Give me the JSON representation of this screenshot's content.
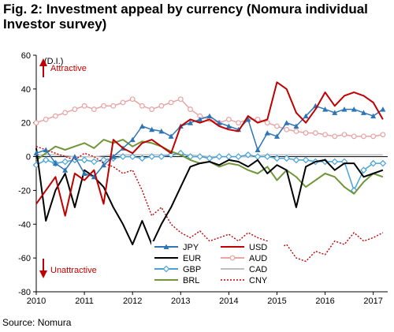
{
  "title": "Fig. 2: Investment appeal by currency (Nomura individual Investor survey)",
  "source": "Source: Nomura",
  "colors": {
    "JPY": "#2e75b6",
    "USD": "#c00000",
    "EUR": "#000000",
    "AUD": "#e8a3a3",
    "GBP": "#4aa3d8",
    "CAD": "#bfbfbf",
    "BRL": "#70963a",
    "CNY": "#c00000",
    "annotation": "#c00000"
  },
  "chart_data": {
    "type": "line",
    "ylabel": "(D.I.)",
    "ylim": [
      -80,
      60
    ],
    "yticks": [
      60,
      40,
      20,
      0,
      -20,
      -40,
      -60,
      -80
    ],
    "xlim": [
      2010,
      2017.3
    ],
    "xticks": [
      "2010",
      "2011",
      "2012",
      "2013",
      "2014",
      "2015",
      "2016",
      "2017"
    ],
    "grid": false,
    "legend": "bottom-center",
    "annotations": {
      "up": "Attractive",
      "down": "Unattractive"
    },
    "series": [
      {
        "name": "JPY",
        "style": "solid-triangle",
        "x": [
          2010.0,
          2010.2,
          2010.4,
          2010.6,
          2010.8,
          2011.0,
          2011.2,
          2011.4,
          2011.6,
          2011.8,
          2012.0,
          2012.2,
          2012.4,
          2012.6,
          2012.8,
          2013.0,
          2013.2,
          2013.4,
          2013.6,
          2013.8,
          2014.0,
          2014.2,
          2014.4,
          2014.6,
          2014.8,
          2015.0,
          2015.2,
          2015.4,
          2015.6,
          2015.8,
          2016.0,
          2016.2,
          2016.4,
          2016.6,
          2016.8,
          2017.0,
          2017.2
        ],
        "values": [
          2,
          4,
          -4,
          -8,
          0,
          -10,
          -12,
          -5,
          0,
          5,
          10,
          18,
          16,
          15,
          12,
          18,
          20,
          22,
          24,
          20,
          18,
          16,
          22,
          4,
          14,
          12,
          20,
          18,
          24,
          30,
          28,
          26,
          28,
          28,
          26,
          24,
          28
        ]
      },
      {
        "name": "USD",
        "style": "solid",
        "x": [
          2010.0,
          2010.2,
          2010.4,
          2010.6,
          2010.8,
          2011.0,
          2011.2,
          2011.4,
          2011.6,
          2011.8,
          2012.0,
          2012.2,
          2012.4,
          2012.6,
          2012.8,
          2013.0,
          2013.2,
          2013.4,
          2013.6,
          2013.8,
          2014.0,
          2014.2,
          2014.4,
          2014.6,
          2014.8,
          2015.0,
          2015.2,
          2015.4,
          2015.6,
          2015.8,
          2016.0,
          2016.2,
          2016.4,
          2016.6,
          2016.8,
          2017.0,
          2017.2
        ],
        "values": [
          -28,
          -20,
          -12,
          -35,
          -10,
          -14,
          -8,
          -28,
          10,
          5,
          2,
          8,
          10,
          6,
          2,
          18,
          22,
          20,
          22,
          18,
          16,
          15,
          24,
          20,
          22,
          44,
          40,
          26,
          20,
          28,
          38,
          30,
          36,
          38,
          36,
          32,
          22
        ]
      },
      {
        "name": "EUR",
        "style": "solid",
        "x": [
          2010.0,
          2010.2,
          2010.4,
          2010.6,
          2010.8,
          2011.0,
          2011.2,
          2011.4,
          2011.6,
          2011.8,
          2012.0,
          2012.2,
          2012.4,
          2012.6,
          2012.8,
          2013.0,
          2013.2,
          2013.4,
          2013.6,
          2013.8,
          2014.0,
          2014.2,
          2014.4,
          2014.6,
          2014.8,
          2015.0,
          2015.2,
          2015.4,
          2015.6,
          2015.8,
          2016.0,
          2016.2,
          2016.4,
          2016.6,
          2016.8,
          2017.0,
          2017.2
        ],
        "values": [
          5,
          -38,
          -20,
          -10,
          -30,
          -8,
          -12,
          -18,
          -30,
          -40,
          -52,
          -38,
          -52,
          -40,
          -30,
          -18,
          -6,
          -4,
          -3,
          -5,
          -2,
          -3,
          -6,
          -2,
          -10,
          -5,
          -8,
          -30,
          -6,
          -3,
          -2,
          -8,
          -4,
          -4,
          -12,
          -10,
          -8
        ]
      },
      {
        "name": "AUD",
        "style": "solid-circle",
        "x": [
          2010.0,
          2010.2,
          2010.4,
          2010.6,
          2010.8,
          2011.0,
          2011.2,
          2011.4,
          2011.6,
          2011.8,
          2012.0,
          2012.2,
          2012.4,
          2012.6,
          2012.8,
          2013.0,
          2013.2,
          2013.4,
          2013.6,
          2013.8,
          2014.0,
          2014.2,
          2014.4,
          2014.6,
          2014.8,
          2015.0,
          2015.2,
          2015.4,
          2015.6,
          2015.8,
          2016.0,
          2016.2,
          2016.4,
          2016.6,
          2016.8,
          2017.0,
          2017.2
        ],
        "values": [
          20,
          22,
          24,
          26,
          28,
          30,
          28,
          30,
          30,
          32,
          34,
          30,
          28,
          30,
          32,
          34,
          28,
          24,
          22,
          20,
          22,
          20,
          22,
          22,
          20,
          18,
          16,
          15,
          14,
          14,
          13,
          12,
          13,
          12,
          12,
          12,
          13
        ]
      },
      {
        "name": "GBP",
        "style": "solid-diamond",
        "x": [
          2010.0,
          2010.2,
          2010.4,
          2010.6,
          2010.8,
          2011.0,
          2011.2,
          2011.4,
          2011.6,
          2011.8,
          2012.0,
          2012.2,
          2012.4,
          2012.6,
          2012.8,
          2013.0,
          2013.2,
          2013.4,
          2013.6,
          2013.8,
          2014.0,
          2014.2,
          2014.4,
          2014.6,
          2014.8,
          2015.0,
          2015.2,
          2015.4,
          2015.6,
          2015.8,
          2016.0,
          2016.2,
          2016.4,
          2016.6,
          2016.8,
          2017.0,
          2017.2
        ],
        "values": [
          -5,
          -2,
          -4,
          -3,
          -2,
          -2,
          -3,
          -2,
          -1,
          0,
          0,
          -1,
          0,
          0,
          1,
          2,
          0,
          0,
          -1,
          0,
          0,
          0,
          1,
          0,
          0,
          -1,
          -1,
          -2,
          -2,
          -3,
          -3,
          -3,
          -3,
          -20,
          -8,
          -4,
          -4
        ]
      },
      {
        "name": "CAD",
        "style": "solid",
        "x": [
          2010.0,
          2010.4,
          2010.8,
          2011.2,
          2011.6,
          2012.0,
          2012.4,
          2012.8,
          2013.2,
          2013.6,
          2014.0,
          2014.4,
          2014.8,
          2015.2,
          2015.6,
          2016.0,
          2016.4,
          2016.8,
          2017.2
        ],
        "values": [
          1,
          1,
          0,
          0,
          1,
          1,
          1,
          1,
          1,
          0,
          0,
          0,
          1,
          1,
          1,
          1,
          1,
          1,
          1
        ]
      },
      {
        "name": "BRL",
        "style": "solid",
        "x": [
          2010.0,
          2010.2,
          2010.4,
          2010.6,
          2010.8,
          2011.0,
          2011.2,
          2011.4,
          2011.6,
          2011.8,
          2012.0,
          2012.2,
          2012.4,
          2012.6,
          2012.8,
          2013.0,
          2013.2,
          2013.4,
          2013.6,
          2013.8,
          2014.0,
          2014.2,
          2014.4,
          2014.6,
          2014.8,
          2015.0,
          2015.2,
          2015.4,
          2015.6,
          2015.8,
          2016.0,
          2016.2,
          2016.4,
          2016.6,
          2016.8,
          2017.0,
          2017.2
        ],
        "values": [
          -2,
          2,
          6,
          4,
          6,
          8,
          5,
          10,
          8,
          10,
          6,
          9,
          8,
          6,
          3,
          1,
          -2,
          -4,
          -3,
          -6,
          -4,
          -5,
          -8,
          -10,
          -6,
          -14,
          -8,
          -12,
          -18,
          -14,
          -10,
          -12,
          -18,
          -22,
          -15,
          -10,
          -12
        ]
      },
      {
        "name": "CNY",
        "style": "dotted",
        "x": [
          2010.0,
          2010.2,
          2010.4,
          2010.6,
          2010.8,
          2011.0,
          2011.2,
          2011.4,
          2011.6,
          2011.8,
          2012.0,
          2012.2,
          2012.4,
          2012.6,
          2012.8,
          2013.0,
          2013.2,
          2013.4,
          2013.6,
          2013.8,
          2014.0,
          2014.2,
          2014.4,
          2014.6,
          2014.8,
          2015.0,
          2015.2,
          2015.4,
          2015.6,
          2015.8,
          2016.0,
          2016.2,
          2016.4,
          2016.6,
          2016.8,
          2017.0,
          2017.2
        ],
        "values": [
          6,
          4,
          2,
          0,
          -2,
          2,
          0,
          -4,
          -6,
          -10,
          -8,
          -20,
          -35,
          -30,
          -40,
          -45,
          -48,
          -44,
          -50,
          -48,
          -46,
          -50,
          -45,
          -48,
          -50,
          -55,
          -52,
          -60,
          -62,
          -56,
          -58,
          -50,
          -52,
          -45,
          -50,
          -48,
          -45
        ]
      }
    ]
  }
}
